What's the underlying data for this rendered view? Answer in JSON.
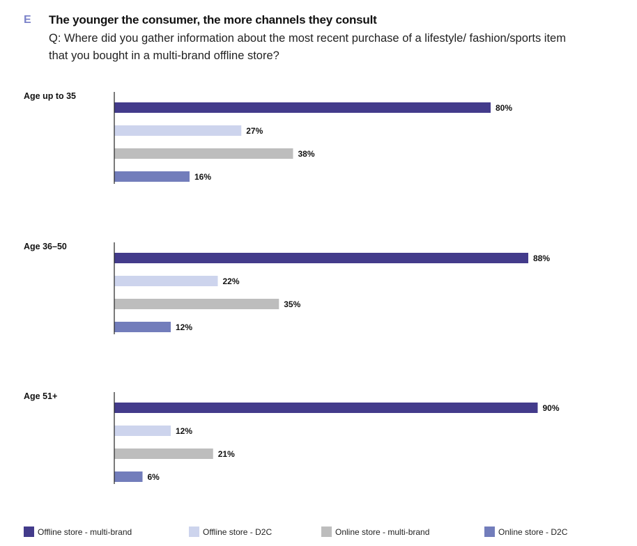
{
  "header": {
    "letter": "E",
    "title": "The younger the consumer, the more channels they consult",
    "question": "Q: Where did you gather information about the most recent purchase of a lifestyle/ fashion/sports item that you bought in a multi-brand offline store?"
  },
  "chart_data": {
    "type": "bar",
    "orientation": "horizontal",
    "title": "The younger the consumer, the more channels they consult",
    "subtitle": "Q: Where did you gather information about the most recent purchase of a lifestyle/ fashion/sports item that you bought in a multi-brand offline store?",
    "xlabel": "",
    "ylabel": "",
    "unit": "%",
    "xlim": [
      0,
      100
    ],
    "grid": false,
    "legend_position": "bottom",
    "categories": [
      "Age up to 35",
      "Age 36-50",
      "Age 51+"
    ],
    "series": [
      {
        "name": "Offline store - multi-brand",
        "color": "#433b8b",
        "values": [
          80,
          88,
          90
        ]
      },
      {
        "name": "Offline store - D2C",
        "color": "#cdd4ed",
        "values": [
          27,
          22,
          12
        ]
      },
      {
        "name": "Online store - multi-brand",
        "color": "#bdbdbd",
        "values": [
          38,
          35,
          21
        ]
      },
      {
        "name": "Online store - D2C",
        "color": "#727dbb",
        "values": [
          16,
          12,
          6
        ]
      }
    ]
  }
}
